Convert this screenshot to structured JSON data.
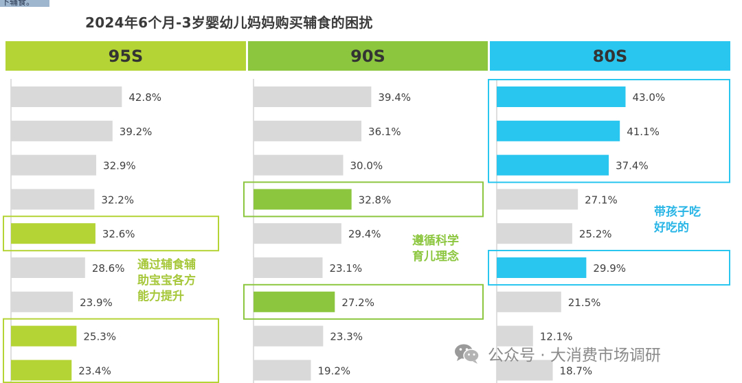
{
  "corner_text": "下辅食。",
  "title": "2024年6个月-3岁婴幼儿妈妈购买辅食的困扰",
  "colors": {
    "c95": "#b4d335",
    "c90": "#8cc63f",
    "c80": "#29c6ef",
    "grey_bar": "#d9d9d9",
    "annot95": "#a6c73a",
    "annot90": "#8cc63f",
    "annot80": "#29b6e6"
  },
  "chart_data": {
    "type": "bar",
    "orientation": "horizontal",
    "panels": [
      {
        "header": "95S",
        "values": [
          42.8,
          39.2,
          32.9,
          32.2,
          32.6,
          28.6,
          23.9,
          25.3,
          23.4
        ],
        "labels": [
          "42.8%",
          "39.2%",
          "32.9%",
          "32.2%",
          "32.6%",
          "28.6%",
          "23.9%",
          "25.3%",
          "23.4%"
        ],
        "highlighted": [
          4,
          7,
          8
        ],
        "annotation": "通过辅食辅\n助宝宝各方\n能力提升"
      },
      {
        "header": "90S",
        "values": [
          39.4,
          36.1,
          30.0,
          32.8,
          29.4,
          23.1,
          27.2,
          23.3,
          19.2
        ],
        "labels": [
          "39.4%",
          "36.1%",
          "30.0%",
          "32.8%",
          "29.4%",
          "23.1%",
          "27.2%",
          "23.3%",
          "19.2%"
        ],
        "highlighted": [
          3,
          6
        ],
        "annotation": "遵循科学\n育儿理念"
      },
      {
        "header": "80S",
        "values": [
          43.0,
          41.1,
          37.4,
          27.1,
          25.2,
          29.9,
          21.5,
          12.1,
          18.7
        ],
        "labels": [
          "43.0%",
          "41.1%",
          "37.4%",
          "27.1%",
          "25.2%",
          "29.9%",
          "21.5%",
          "12.1%",
          "18.7%"
        ],
        "highlighted": [
          0,
          1,
          2,
          5
        ],
        "annotation": "带孩子吃\n好吃的"
      }
    ]
  },
  "watermark": {
    "text": "公众号 · 大消费市场调研",
    "icon": "wechat-icon"
  }
}
